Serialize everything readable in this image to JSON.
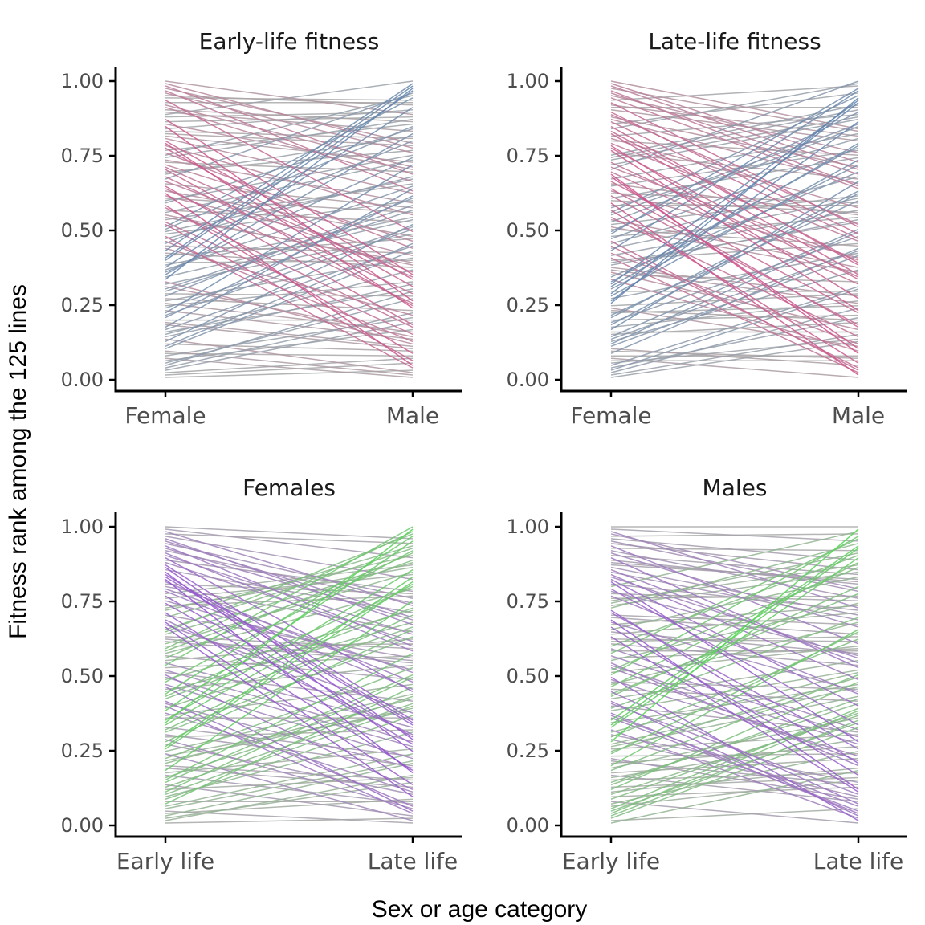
{
  "figure": {
    "xlabel": "Sex or age category",
    "ylabel": "Fitness rank among the 125 lines",
    "n_lines": 125
  },
  "chart_data": [
    {
      "type": "line",
      "title": "Early-life fitness",
      "categories": [
        "Female",
        "Male"
      ],
      "ylim": [
        0,
        1
      ],
      "yticks": [
        "0.00",
        "0.25",
        "0.50",
        "0.75",
        "1.00"
      ],
      "color_mode": "sex",
      "colors": {
        "neutral": "#a8a8a8",
        "a_high": "#e0287a",
        "b_high": "#4a78b0"
      },
      "seed": 11
    },
    {
      "type": "line",
      "title": "Late-life fitness",
      "categories": [
        "Female",
        "Male"
      ],
      "ylim": [
        0,
        1
      ],
      "yticks": [
        "0.00",
        "0.25",
        "0.50",
        "0.75",
        "1.00"
      ],
      "color_mode": "sex",
      "colors": {
        "neutral": "#a8a8a8",
        "a_high": "#e0287a",
        "b_high": "#4a78b0"
      },
      "seed": 29
    },
    {
      "type": "line",
      "title": "Females",
      "categories": [
        "Early life",
        "Late life"
      ],
      "ylim": [
        0,
        1
      ],
      "yticks": [
        "0.00",
        "0.25",
        "0.50",
        "0.75",
        "1.00"
      ],
      "color_mode": "age",
      "colors": {
        "neutral": "#a8a8a8",
        "a_high": "#8a2be2",
        "b_high": "#3ee03e"
      },
      "seed": 47
    },
    {
      "type": "line",
      "title": "Males",
      "categories": [
        "Early life",
        "Late life"
      ],
      "ylim": [
        0,
        1
      ],
      "yticks": [
        "0.00",
        "0.25",
        "0.50",
        "0.75",
        "1.00"
      ],
      "color_mode": "age",
      "colors": {
        "neutral": "#a8a8a8",
        "a_high": "#8a2be2",
        "b_high": "#3ee03e"
      },
      "seed": 83
    }
  ]
}
